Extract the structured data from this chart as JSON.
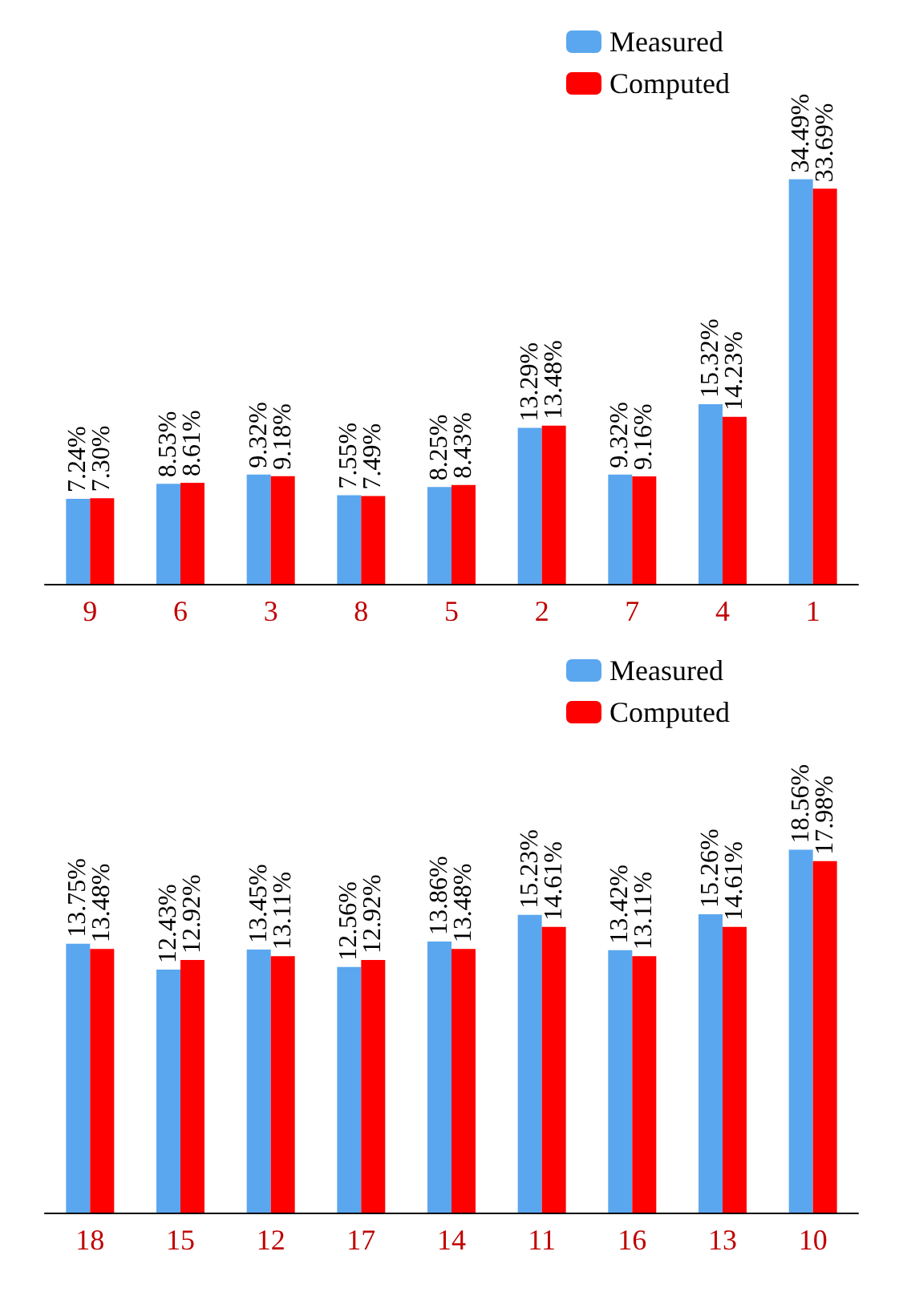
{
  "chart_data": [
    {
      "type": "bar",
      "categories": [
        "9",
        "6",
        "3",
        "8",
        "5",
        "2",
        "7",
        "4",
        "1"
      ],
      "series": [
        {
          "name": "Measured",
          "color": "#5ba7ef",
          "values": [
            7.24,
            8.53,
            9.32,
            7.55,
            8.25,
            13.29,
            9.32,
            15.32,
            34.49
          ],
          "value_labels": [
            "7.24%",
            "8.53%",
            "9.32%",
            "7.55%",
            "8.25%",
            "13.29%",
            "9.32%",
            "15.32%",
            "34.49%"
          ]
        },
        {
          "name": "Computed",
          "color": "#ff0000",
          "values": [
            7.3,
            8.61,
            9.18,
            7.49,
            8.43,
            13.48,
            9.16,
            14.23,
            33.69
          ],
          "value_labels": [
            "7.30%",
            "8.61%",
            "9.18%",
            "7.49%",
            "8.43%",
            "13.48%",
            "9.16%",
            "14.23%",
            "33.69%"
          ]
        }
      ],
      "legend": "top right",
      "tick_labels": "x"
    },
    {
      "type": "bar",
      "categories": [
        "18",
        "15",
        "12",
        "17",
        "14",
        "11",
        "16",
        "13",
        "10"
      ],
      "series": [
        {
          "name": "Measured",
          "color": "#5ba7ef",
          "values": [
            13.75,
            12.43,
            13.45,
            12.56,
            13.86,
            15.23,
            13.42,
            15.26,
            18.56
          ],
          "value_labels": [
            "13.75%",
            "12.43%",
            "13.45%",
            "12.56%",
            "13.86%",
            "15.23%",
            "13.42%",
            "15.26%",
            "18.56%"
          ]
        },
        {
          "name": "Computed",
          "color": "#ff0000",
          "values": [
            13.48,
            12.92,
            13.11,
            12.92,
            13.48,
            14.61,
            13.11,
            14.61,
            17.98
          ],
          "value_labels": [
            "13.48%",
            "12.92%",
            "13.11%",
            "12.92%",
            "13.48%",
            "14.61%",
            "13.11%",
            "14.61%",
            "17.98%"
          ]
        }
      ],
      "legend": "top right",
      "tick_labels": "x"
    }
  ]
}
